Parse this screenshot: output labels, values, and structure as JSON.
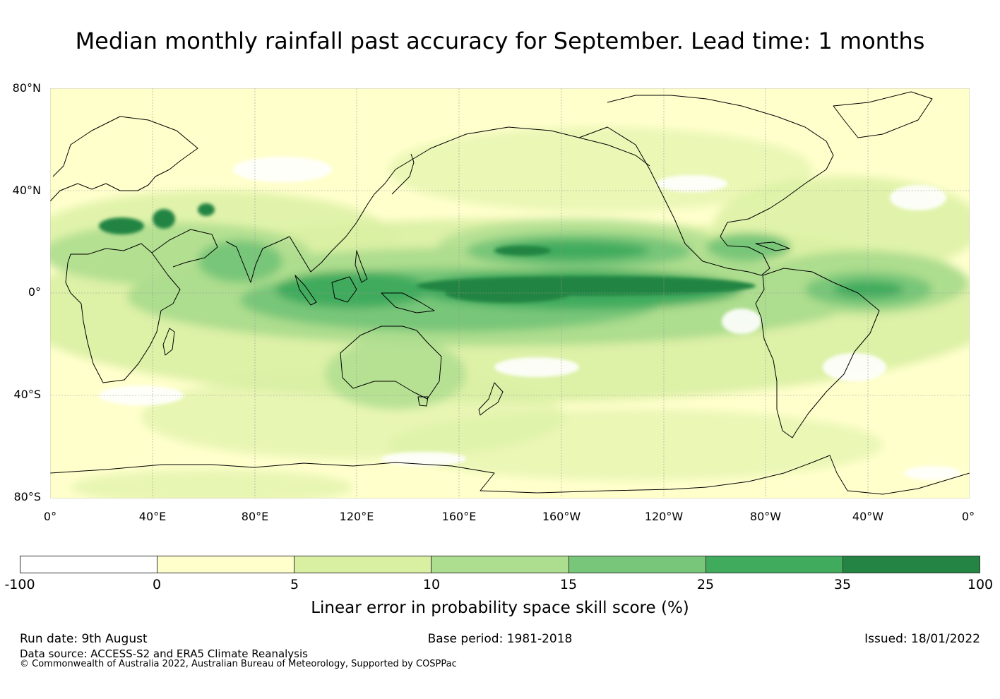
{
  "title": "Median monthly rainfall past accuracy for September. Lead time: 1 months",
  "map": {
    "projection": "equirectangular",
    "center_longitude": "180",
    "lat_labels": [
      "80°N",
      "40°N",
      "0°",
      "40°S",
      "80°S"
    ],
    "lon_labels": [
      "0°",
      "40°E",
      "80°E",
      "120°E",
      "160°E",
      "160°W",
      "120°W",
      "80°W",
      "40°W",
      "0°"
    ],
    "gridlines": true,
    "coastlines": true
  },
  "colorbar": {
    "label": "Linear error in probability space skill score (%)",
    "ticks": [
      "-100",
      "0",
      "5",
      "10",
      "15",
      "25",
      "35",
      "100"
    ],
    "colors": [
      "#ffffff",
      "#ffffcc",
      "#d9f0a3",
      "#addd8e",
      "#78c679",
      "#41ab5d",
      "#238443"
    ]
  },
  "footer": {
    "run_date": "Run date: 9th August",
    "base_period": "Base period: 1981-2018",
    "issued": "Issued: 18/01/2022",
    "data_source": "Data source: ACCESS-S2 and ERA5 Climate Reanalysis",
    "copyright": "© Commonwealth of Australia 2022, Australian Bureau of Meteorology, Supported by COSPPac"
  }
}
